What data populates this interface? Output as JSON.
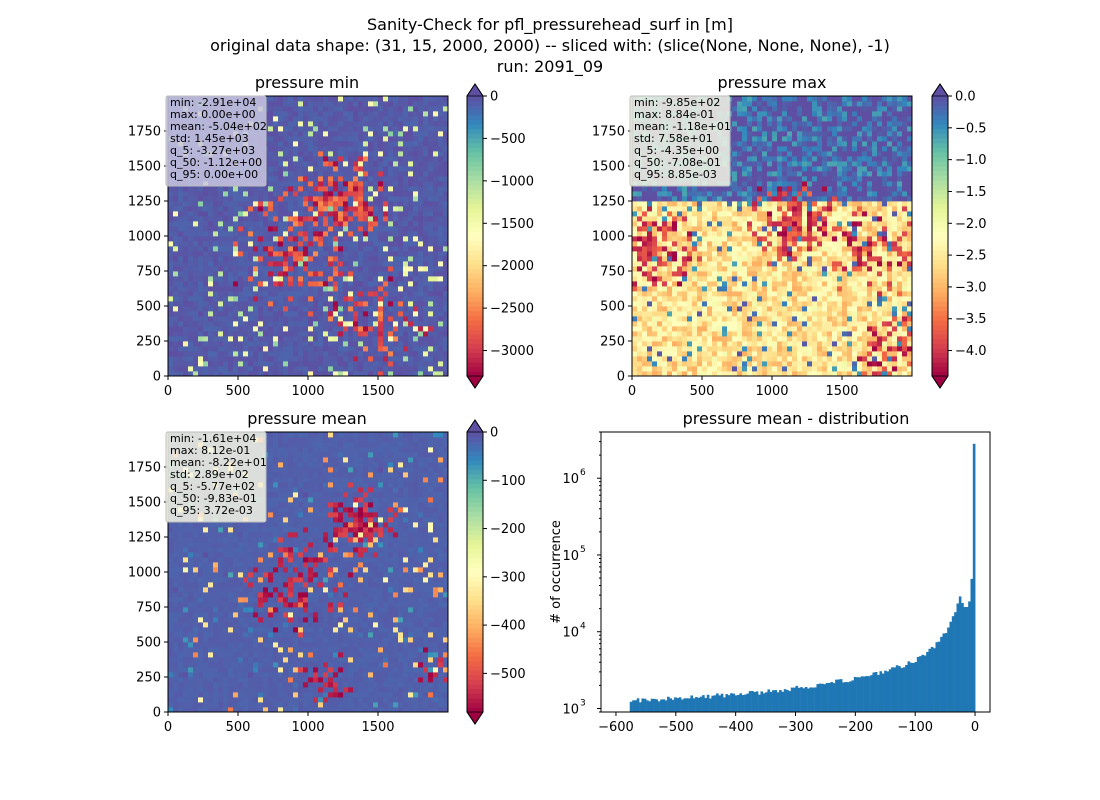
{
  "suptitle": [
    "Sanity-Check for pfl_pressurehead_surf in [m]",
    "original data shape: (31, 15, 2000, 2000) -- sliced with: (slice(None, None, None), -1)",
    "run: 2091_09"
  ],
  "colormap": {
    "name": "Spectral",
    "stops": [
      "#9e0142",
      "#d53e4f",
      "#f46d43",
      "#fdae61",
      "#fee08b",
      "#ffffbf",
      "#e6f598",
      "#abdda4",
      "#66c2a5",
      "#3288bd",
      "#5e4fa2"
    ]
  },
  "chart_data": [
    {
      "type": "heatmap",
      "title": "pressure min",
      "xlim": [
        0,
        2000
      ],
      "ylim": [
        0,
        2000
      ],
      "x_ticks": [
        0,
        500,
        1000,
        1500
      ],
      "y_ticks": [
        0,
        250,
        500,
        750,
        1000,
        1250,
        1500,
        1750
      ],
      "colorbar": {
        "vmin": -3300,
        "vmax": 0,
        "ticks": [
          0,
          -500,
          -1000,
          -1500,
          -2000,
          -2500,
          -3000
        ],
        "extend": "both",
        "decimals": 0
      },
      "stats": [
        "min: -2.91e+04",
        "max: 0.00e+00",
        "mean: -5.04e+02",
        "std: 1.45e+03",
        "q_5: -3.27e+03",
        "q_50: -1.12e+00",
        "q_95: 0.00e+00"
      ]
    },
    {
      "type": "heatmap",
      "title": "pressure max",
      "xlim": [
        0,
        2000
      ],
      "ylim": [
        0,
        2000
      ],
      "x_ticks": [
        0,
        500,
        1000,
        1500
      ],
      "y_ticks": [
        0,
        250,
        500,
        750,
        1000,
        1250,
        1500,
        1750
      ],
      "colorbar": {
        "vmin": -4.4,
        "vmax": 0.0,
        "ticks": [
          0.0,
          -0.5,
          -1.0,
          -1.5,
          -2.0,
          -2.5,
          -3.0,
          -3.5,
          -4.0
        ],
        "extend": "both",
        "decimals": 1
      },
      "stats": [
        "min: -9.85e+02",
        "max: 8.84e-01",
        "mean: -1.18e+01",
        "std: 7.58e+01",
        "q_5: -4.35e+00",
        "q_50: -7.08e-01",
        "q_95: 8.85e-03"
      ]
    },
    {
      "type": "heatmap",
      "title": "pressure mean",
      "xlim": [
        0,
        2000
      ],
      "ylim": [
        0,
        2000
      ],
      "x_ticks": [
        0,
        500,
        1000,
        1500
      ],
      "y_ticks": [
        0,
        250,
        500,
        750,
        1000,
        1250,
        1500,
        1750
      ],
      "colorbar": {
        "vmin": -580,
        "vmax": 0,
        "ticks": [
          0,
          -100,
          -200,
          -300,
          -400,
          -500
        ],
        "extend": "both",
        "decimals": 0
      },
      "stats": [
        "min: -1.61e+04",
        "max: 8.12e-01",
        "mean: -8.22e+01",
        "std: 2.89e+02",
        "q_5: -5.77e+02",
        "q_50: -9.83e-01",
        "q_95: 3.72e-03"
      ]
    },
    {
      "type": "bar",
      "title": "pressure mean - distribution",
      "ylabel": "# of occurrence",
      "xlabel": "",
      "yscale": "log",
      "xlim": [
        -625,
        25
      ],
      "ylim": [
        900,
        4000000
      ],
      "x_ticks": [
        -600,
        -500,
        -400,
        -300,
        -200,
        -100,
        0
      ],
      "y_tick_exponents": [
        3,
        4,
        5,
        6
      ],
      "bar_color": "#1f77b4",
      "bin_width": 3.9,
      "bins": [
        [
          -577,
          1250
        ],
        [
          -550,
          1300
        ],
        [
          -500,
          1360
        ],
        [
          -450,
          1440
        ],
        [
          -400,
          1520
        ],
        [
          -350,
          1650
        ],
        [
          -300,
          1850
        ],
        [
          -250,
          2100
        ],
        [
          -200,
          2450
        ],
        [
          -150,
          3000
        ],
        [
          -100,
          4200
        ],
        [
          -80,
          5300
        ],
        [
          -60,
          7500
        ],
        [
          -50,
          9500
        ],
        [
          -40,
          13000
        ],
        [
          -32,
          20000
        ],
        [
          -25,
          30000
        ],
        [
          -20,
          22000
        ],
        [
          -14,
          20000
        ],
        [
          -10,
          23000
        ],
        [
          -7,
          28000
        ],
        [
          -5,
          32000
        ],
        [
          -3,
          60000
        ],
        [
          -2,
          135000
        ],
        [
          -1,
          2700000
        ]
      ]
    }
  ]
}
